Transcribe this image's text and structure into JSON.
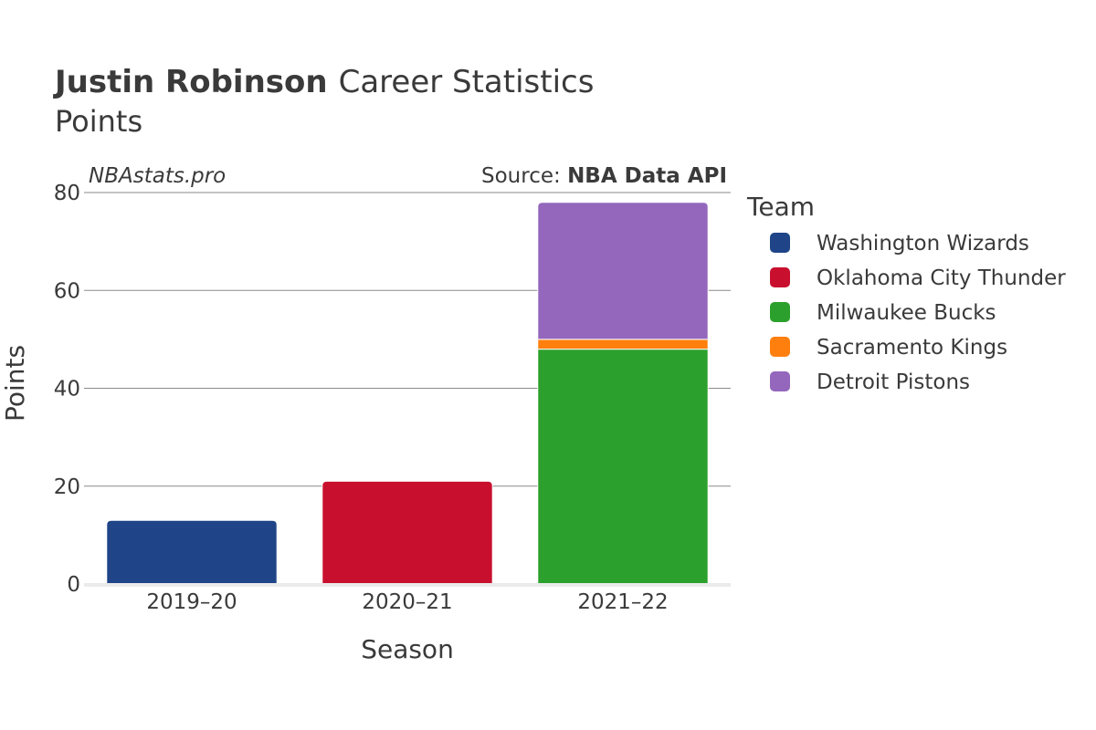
{
  "header": {
    "title_bold": "Justin Robinson",
    "title_rest": "Career Statistics",
    "subtitle": "Points"
  },
  "credits": {
    "site": "NBAstats.pro",
    "source_prefix": "Source: ",
    "source_name": "NBA Data API"
  },
  "legend": {
    "title": "Team"
  },
  "chart_data": {
    "type": "bar",
    "stacked": true,
    "categories": [
      "2019–20",
      "2020–21",
      "2021–22"
    ],
    "xlabel": "Season",
    "ylabel": "Points",
    "ylim": [
      0,
      80
    ],
    "yticks": [
      0,
      20,
      40,
      60,
      80
    ],
    "grid": true,
    "legend_position": "right",
    "series": [
      {
        "name": "Washington Wizards",
        "color": "#1f4588",
        "values": [
          13,
          0,
          0
        ]
      },
      {
        "name": "Oklahoma City Thunder",
        "color": "#c8102e",
        "values": [
          0,
          21,
          0
        ]
      },
      {
        "name": "Milwaukee Bucks",
        "color": "#2ca02c",
        "values": [
          0,
          0,
          48
        ]
      },
      {
        "name": "Sacramento Kings",
        "color": "#ff7f0e",
        "values": [
          0,
          0,
          2
        ]
      },
      {
        "name": "Detroit Pistons",
        "color": "#9467bd",
        "values": [
          0,
          0,
          28
        ]
      }
    ]
  }
}
